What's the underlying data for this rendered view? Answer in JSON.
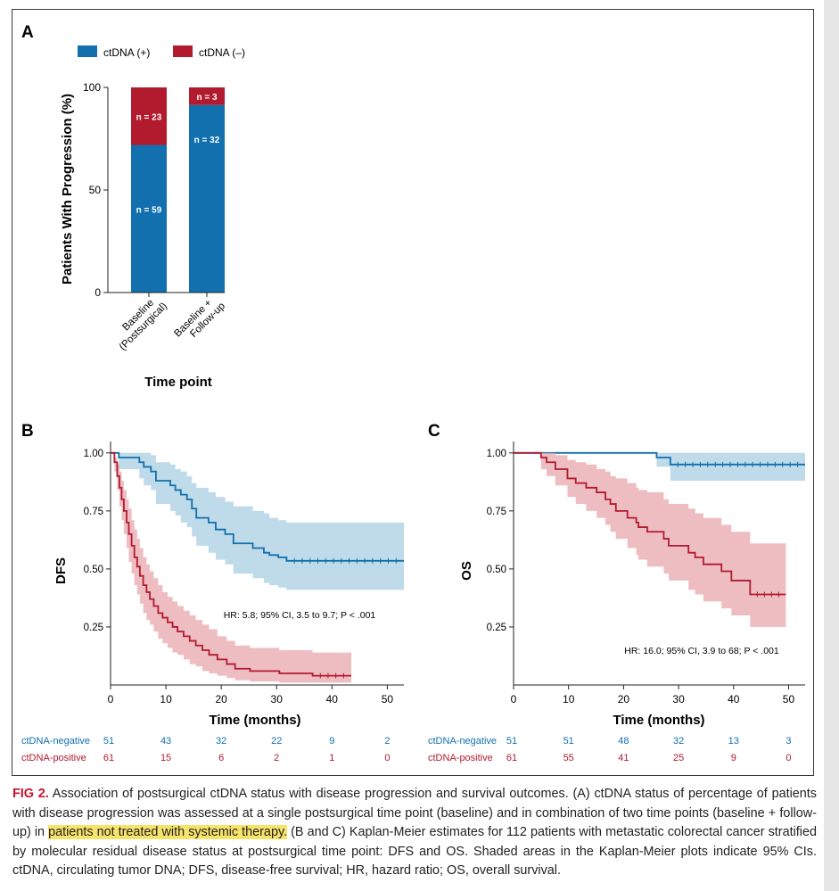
{
  "figure": {
    "panel_a_label": "A",
    "panel_b_label": "B",
    "panel_c_label": "C"
  },
  "caption": {
    "label": "FIG 2.",
    "part1": "Association of postsurgical ctDNA status with disease progression and survival outcomes. (A) ctDNA status of percentage of patients with disease progression was assessed at a single postsurgical time point (baseline) and in combination of two time points (baseline + follow-up) in ",
    "highlighted": "patients not treated with systemic therapy.",
    "part2": " (B and C) Kaplan-Meier estimates for 112 patients with metastatic colorectal cancer stratified by molecular residual disease status at postsurgical time point: DFS and OS. Shaded areas in the Kaplan-Meier plots indicate 95% CIs. ctDNA, circulating tumor DNA; DFS, disease-free survival; HR, hazard ratio; OS, overall survival."
  },
  "colors": {
    "positive": "#b21a2e",
    "negative": "#1170ad",
    "positive_fill": "#e7a7ad",
    "negative_fill": "#a9cde2"
  },
  "chart_data": [
    {
      "type": "bar",
      "stacked": true,
      "legend": [
        {
          "name": "ctDNA (+)",
          "color": "#1170ad"
        },
        {
          "name": "ctDNA (–)",
          "color": "#b21a2e"
        }
      ],
      "legend_placement": "top",
      "categories": [
        [
          "Baseline",
          "(Postsurgical)"
        ],
        [
          "Baseline +",
          "Follow-up"
        ]
      ],
      "series": [
        {
          "name": "ctDNA (+)",
          "values": [
            71.95,
            91.43
          ],
          "labels": [
            "n = 59",
            "n = 32"
          ]
        },
        {
          "name": "ctDNA (–)",
          "values": [
            28.05,
            8.57
          ],
          "labels": [
            "n = 23",
            "n = 3"
          ]
        }
      ],
      "ylabel": "Patients With Progression (%)",
      "xlabel": "Time point",
      "ylim": [
        0,
        100
      ],
      "yticks": [
        "0",
        "50",
        "100"
      ]
    },
    {
      "type": "line",
      "step": true,
      "ylabel": "DFS",
      "xlabel": "Time (months)",
      "xlim": [
        0,
        53
      ],
      "ylim": [
        0,
        1.03
      ],
      "xticks": [
        "0",
        "10",
        "20",
        "30",
        "40",
        "50"
      ],
      "yticks": [
        "0.25",
        "0.50",
        "0.75",
        "1.00"
      ],
      "annotation": "HR: 5.8; 95% CI, 3.5 to 9.7; P < .001",
      "series": [
        {
          "name": "ctDNA-negative",
          "x": [
            0,
            1.5,
            5.2,
            6,
            7.3,
            8.2,
            10.8,
            11.7,
            12.7,
            13.8,
            14.7,
            15.5,
            17.7,
            19,
            20.7,
            22.2,
            25.7,
            27.7,
            28.7,
            30.3,
            31.8,
            53
          ],
          "y": [
            1.0,
            0.98,
            0.96,
            0.94,
            0.92,
            0.88,
            0.86,
            0.84,
            0.82,
            0.8,
            0.76,
            0.72,
            0.7,
            0.67,
            0.65,
            0.61,
            0.59,
            0.57,
            0.56,
            0.55,
            0.535,
            0.535
          ],
          "ci_upper": [
            1.0,
            1.0,
            1.0,
            1.0,
            0.99,
            0.96,
            0.95,
            0.93,
            0.92,
            0.9,
            0.87,
            0.85,
            0.83,
            0.81,
            0.79,
            0.77,
            0.75,
            0.74,
            0.72,
            0.71,
            0.7,
            0.7
          ],
          "ci_lower": [
            1.0,
            0.93,
            0.89,
            0.86,
            0.84,
            0.78,
            0.75,
            0.73,
            0.7,
            0.68,
            0.64,
            0.6,
            0.57,
            0.54,
            0.52,
            0.48,
            0.46,
            0.44,
            0.43,
            0.42,
            0.41,
            0.41
          ]
        },
        {
          "name": "ctDNA-positive",
          "x": [
            0,
            0.7,
            1.2,
            1.6,
            2.0,
            2.4,
            2.9,
            3.3,
            3.8,
            4.3,
            4.8,
            5.3,
            5.9,
            6.5,
            7.1,
            7.8,
            8.6,
            9.4,
            10.3,
            11.2,
            12.1,
            13.2,
            14.3,
            15.4,
            16.6,
            17.8,
            19.3,
            21.0,
            22.5,
            25.2,
            30.5,
            36.5,
            43.5
          ],
          "y": [
            1.0,
            0.96,
            0.9,
            0.85,
            0.8,
            0.75,
            0.7,
            0.65,
            0.6,
            0.55,
            0.51,
            0.47,
            0.43,
            0.4,
            0.37,
            0.34,
            0.31,
            0.29,
            0.27,
            0.25,
            0.23,
            0.21,
            0.19,
            0.17,
            0.15,
            0.13,
            0.11,
            0.09,
            0.07,
            0.06,
            0.05,
            0.04,
            0.04
          ],
          "ci_upper": [
            1.0,
            0.98,
            0.95,
            0.92,
            0.88,
            0.84,
            0.8,
            0.76,
            0.71,
            0.67,
            0.63,
            0.59,
            0.55,
            0.52,
            0.49,
            0.46,
            0.43,
            0.4,
            0.38,
            0.36,
            0.34,
            0.32,
            0.3,
            0.28,
            0.26,
            0.24,
            0.21,
            0.19,
            0.17,
            0.16,
            0.15,
            0.14,
            0.14
          ],
          "ci_lower": [
            1.0,
            0.92,
            0.84,
            0.77,
            0.71,
            0.65,
            0.59,
            0.53,
            0.48,
            0.43,
            0.39,
            0.35,
            0.31,
            0.28,
            0.26,
            0.23,
            0.2,
            0.18,
            0.16,
            0.14,
            0.13,
            0.11,
            0.09,
            0.08,
            0.06,
            0.05,
            0.04,
            0.03,
            0.02,
            0.015,
            0.01,
            0.01,
            0.01
          ]
        }
      ],
      "risk_table": {
        "rows": [
          {
            "name": "ctDNA-negative",
            "values": [
              "51",
              "43",
              "32",
              "22",
              "9",
              "2"
            ]
          },
          {
            "name": "ctDNA-positive",
            "values": [
              "61",
              "15",
              "6",
              "2",
              "1",
              "0"
            ]
          }
        ]
      }
    },
    {
      "type": "line",
      "step": true,
      "ylabel": "OS",
      "xlabel": "Time (months)",
      "xlim": [
        0,
        53
      ],
      "ylim": [
        0,
        1.03
      ],
      "xticks": [
        "0",
        "10",
        "20",
        "30",
        "40",
        "50"
      ],
      "yticks": [
        "0.25",
        "0.50",
        "0.75",
        "1.00"
      ],
      "annotation": "HR: 16.0; 95% CI, 3.9 to 68; P < .001",
      "series": [
        {
          "name": "ctDNA-negative",
          "x": [
            0,
            26,
            28.5,
            53
          ],
          "y": [
            1.0,
            0.98,
            0.95,
            0.95
          ],
          "ci_upper": [
            1.0,
            1.0,
            1.0,
            1.0
          ],
          "ci_lower": [
            1.0,
            0.94,
            0.88,
            0.88
          ]
        },
        {
          "name": "ctDNA-positive",
          "x": [
            0,
            5,
            6,
            7.6,
            9.8,
            11.3,
            13.2,
            15.1,
            16.7,
            17.6,
            18.6,
            20.7,
            22.3,
            22.7,
            24.3,
            27.3,
            28.2,
            31.8,
            33,
            34.5,
            37.8,
            39.6,
            43,
            49.5
          ],
          "y": [
            1.0,
            0.98,
            0.96,
            0.93,
            0.89,
            0.87,
            0.85,
            0.83,
            0.8,
            0.78,
            0.75,
            0.72,
            0.7,
            0.68,
            0.66,
            0.63,
            0.6,
            0.57,
            0.55,
            0.52,
            0.49,
            0.45,
            0.39,
            0.39
          ],
          "ci_upper": [
            1.0,
            1.0,
            1.0,
            0.99,
            0.97,
            0.96,
            0.95,
            0.93,
            0.92,
            0.9,
            0.89,
            0.87,
            0.85,
            0.84,
            0.83,
            0.8,
            0.78,
            0.76,
            0.74,
            0.72,
            0.69,
            0.66,
            0.61,
            0.61
          ],
          "ci_lower": [
            1.0,
            0.93,
            0.9,
            0.86,
            0.81,
            0.78,
            0.75,
            0.72,
            0.69,
            0.66,
            0.63,
            0.59,
            0.56,
            0.54,
            0.51,
            0.48,
            0.45,
            0.41,
            0.39,
            0.36,
            0.33,
            0.3,
            0.25,
            0.25
          ]
        }
      ],
      "risk_table": {
        "rows": [
          {
            "name": "ctDNA-negative",
            "values": [
              "51",
              "51",
              "48",
              "32",
              "13",
              "3"
            ]
          },
          {
            "name": "ctDNA-positive",
            "values": [
              "61",
              "55",
              "41",
              "25",
              "9",
              "0"
            ]
          }
        ]
      }
    }
  ]
}
